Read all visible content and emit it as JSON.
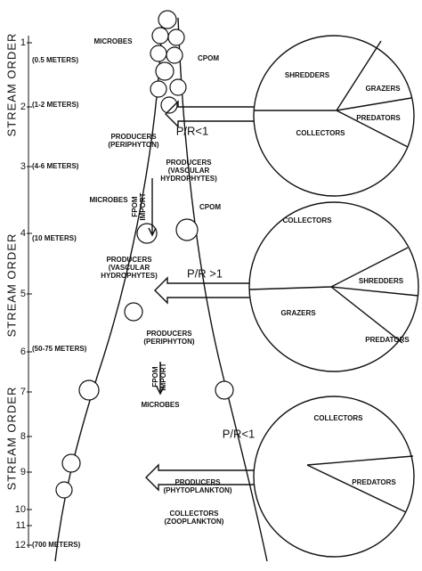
{
  "axis_label": "STREAM ORDER",
  "stream_orders": [
    "1",
    "2",
    "3",
    "4",
    "5",
    "6",
    "7",
    "8",
    "9",
    "10",
    "11",
    "12"
  ],
  "widths": [
    "(0.5 METERS)",
    "(1-2 METERS)",
    "(4-6 METERS)",
    "(10 METERS)",
    "(50-75 METERS)",
    "(700 METERS)"
  ],
  "annotations": [
    "MICROBES",
    "CPOM",
    "PRODUCERS",
    "(PERIPHYTON)",
    "P/R<1",
    "PRODUCERS",
    "(VASCULAR",
    "HYDROPHYTES)",
    "FPOM",
    "IMPORT",
    "MICROBES",
    "CPOM",
    "P/R >1",
    "PRODUCERS",
    "(VASCULAR",
    "HYDROPHYTES)",
    "PRODUCERS",
    "(PERIPHYTON)",
    "FPOM",
    "IMPORT",
    "MICROBES",
    "P/R<1",
    "PRODUCERS",
    "(PHYTOPLANKTON)",
    "COLLECTORS",
    "(ZOOPLANKTON)"
  ],
  "circles": [
    {
      "groups": [
        "SHREDDERS",
        "GRAZERS",
        "PREDATORS",
        "COLLECTORS"
      ]
    },
    {
      "groups": [
        "COLLECTORS",
        "SHREDDERS",
        "GRAZERS",
        "PREDATORS"
      ]
    },
    {
      "groups": [
        "COLLECTORS",
        "PREDATORS"
      ]
    }
  ]
}
